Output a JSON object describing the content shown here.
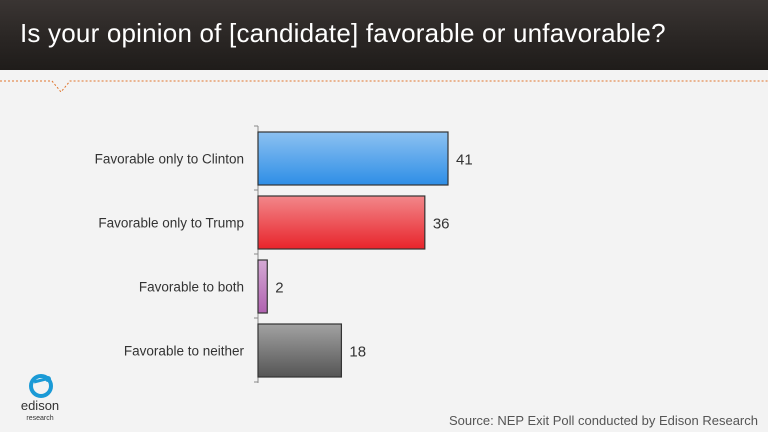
{
  "title": "Is your opinion of [candidate] favorable or unfavorable?",
  "source": "Source: NEP Exit Poll conducted by Edison Research",
  "logo": {
    "name": "edison",
    "subname": "research",
    "icon": "edison-logo-icon"
  },
  "colors": {
    "accent": "#e0752c",
    "clinton": "#2e8ee6",
    "trump": "#e8242b",
    "both": "#b062b0",
    "neither": "#555555"
  },
  "chart_data": {
    "type": "bar",
    "orientation": "horizontal",
    "categories": [
      "Favorable only to Clinton",
      "Favorable only to Trump",
      "Favorable to both",
      "Favorable to neither"
    ],
    "values": [
      41,
      36,
      2,
      18
    ],
    "data_labels": [
      "41",
      "36",
      "2",
      "18"
    ],
    "colors": [
      "#2e8ee6",
      "#e8242b",
      "#b062b0",
      "#555555"
    ],
    "xlim": [
      0,
      41
    ],
    "grid": false,
    "legend": "none"
  }
}
